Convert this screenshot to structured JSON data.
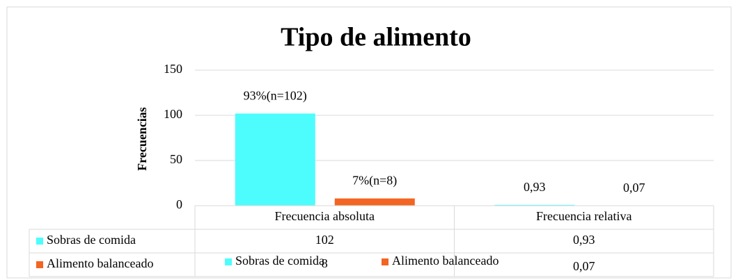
{
  "chart_data": {
    "type": "bar",
    "title": "Tipo de alimento",
    "y_label": "Frecuencias",
    "categories": [
      "Frecuencia absoluta",
      "Frecuencia relativa"
    ],
    "series": [
      {
        "name": "Sobras de comida",
        "color": "#4dfdfd",
        "values": [
          102,
          0.93
        ],
        "value_labels": [
          "93%(n=102)",
          "0,93"
        ]
      },
      {
        "name": "Alimento balanceado",
        "color": "#f26522",
        "values": [
          8,
          0.07
        ],
        "value_labels": [
          "7%(n=8)",
          "0,07"
        ]
      }
    ],
    "ylim": [
      0,
      150
    ],
    "yticks": [
      0,
      50,
      100,
      150
    ],
    "grid": true,
    "data_table": true
  }
}
